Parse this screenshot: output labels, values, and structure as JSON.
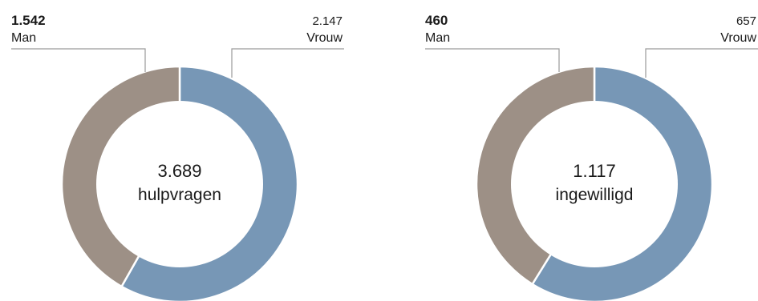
{
  "chart_data": [
    {
      "type": "pie",
      "variant": "donut",
      "center_value": "3.689",
      "center_label": "hulpvragen",
      "slices": [
        {
          "label": "Vrouw",
          "display_value": "2.147",
          "value": 2147,
          "color": "#7797b6"
        },
        {
          "label": "Man",
          "display_value": "1.542",
          "value": 1542,
          "color": "#9d9086"
        }
      ]
    },
    {
      "type": "pie",
      "variant": "donut",
      "center_value": "1.117",
      "center_label": "ingewilligd",
      "slices": [
        {
          "label": "Vrouw",
          "display_value": "657",
          "value": 657,
          "color": "#7797b6"
        },
        {
          "label": "Man",
          "display_value": "460",
          "value": 460,
          "color": "#9d9086"
        }
      ]
    }
  ]
}
